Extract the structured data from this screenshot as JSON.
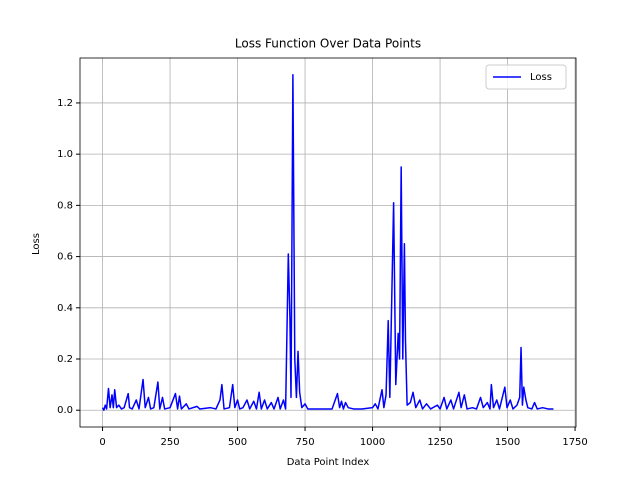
{
  "chart_data": {
    "type": "line",
    "title": "Loss Function Over Data Points",
    "x_label": "Data Point Index",
    "y_label": "Loss",
    "x": [
      0,
      5,
      10,
      15,
      22,
      28,
      35,
      40,
      45,
      52,
      60,
      70,
      80,
      95,
      100,
      110,
      125,
      135,
      150,
      158,
      170,
      178,
      190,
      205,
      212,
      222,
      230,
      250,
      270,
      278,
      285,
      292,
      310,
      320,
      350,
      360,
      400,
      420,
      435,
      442,
      450,
      470,
      482,
      490,
      500,
      508,
      520,
      535,
      545,
      560,
      570,
      580,
      588,
      600,
      610,
      625,
      635,
      650,
      658,
      670,
      678,
      688,
      694,
      698,
      705,
      712,
      718,
      724,
      730,
      738,
      750,
      760,
      800,
      850,
      870,
      878,
      885,
      892,
      900,
      910,
      930,
      960,
      1000,
      1010,
      1020,
      1035,
      1042,
      1050,
      1058,
      1064,
      1078,
      1086,
      1095,
      1100,
      1106,
      1112,
      1118,
      1122,
      1128,
      1140,
      1150,
      1160,
      1175,
      1185,
      1200,
      1215,
      1240,
      1250,
      1265,
      1275,
      1290,
      1300,
      1320,
      1328,
      1340,
      1350,
      1370,
      1385,
      1400,
      1410,
      1425,
      1435,
      1440,
      1448,
      1460,
      1470,
      1490,
      1498,
      1510,
      1520,
      1535,
      1545,
      1550,
      1555,
      1560,
      1568,
      1575,
      1590,
      1600,
      1610,
      1630,
      1650,
      1670
    ],
    "series": [
      {
        "name": "Loss",
        "color": "#0000ff",
        "values": [
          0.01,
          0.0,
          0.02,
          0.005,
          0.085,
          0.01,
          0.06,
          0.01,
          0.08,
          0.01,
          0.02,
          0.005,
          0.01,
          0.065,
          0.01,
          0.005,
          0.04,
          0.005,
          0.12,
          0.01,
          0.05,
          0.005,
          0.01,
          0.11,
          0.005,
          0.05,
          0.005,
          0.01,
          0.065,
          0.005,
          0.055,
          0.005,
          0.025,
          0.005,
          0.015,
          0.005,
          0.01,
          0.005,
          0.04,
          0.1,
          0.005,
          0.01,
          0.1,
          0.01,
          0.04,
          0.005,
          0.01,
          0.04,
          0.005,
          0.035,
          0.005,
          0.07,
          0.005,
          0.04,
          0.005,
          0.03,
          0.005,
          0.05,
          0.005,
          0.04,
          0.005,
          0.61,
          0.36,
          0.05,
          1.31,
          0.2,
          0.05,
          0.23,
          0.07,
          0.01,
          0.025,
          0.005,
          0.005,
          0.005,
          0.065,
          0.01,
          0.035,
          0.005,
          0.03,
          0.01,
          0.005,
          0.005,
          0.01,
          0.025,
          0.005,
          0.08,
          0.01,
          0.06,
          0.35,
          0.05,
          0.81,
          0.1,
          0.3,
          0.2,
          0.95,
          0.2,
          0.65,
          0.27,
          0.02,
          0.03,
          0.07,
          0.01,
          0.04,
          0.005,
          0.025,
          0.005,
          0.02,
          0.005,
          0.05,
          0.005,
          0.04,
          0.005,
          0.07,
          0.01,
          0.06,
          0.005,
          0.01,
          0.005,
          0.05,
          0.01,
          0.03,
          0.005,
          0.1,
          0.01,
          0.04,
          0.005,
          0.09,
          0.01,
          0.04,
          0.005,
          0.02,
          0.05,
          0.245,
          0.02,
          0.09,
          0.04,
          0.01,
          0.005,
          0.03,
          0.005,
          0.01,
          0.005,
          0.005
        ]
      }
    ],
    "xlim": [
      -83.5,
      1753.5
    ],
    "xticks": [
      0,
      250,
      500,
      750,
      1000,
      1250,
      1500,
      1750
    ],
    "ylim": [
      -0.0655,
      1.3755
    ],
    "yticks": [
      {
        "value": 0.0,
        "label": "0.0"
      },
      0.2,
      0.4,
      0.6,
      0.8,
      {
        "value": 1.0,
        "label": "1.0"
      },
      1.2
    ],
    "grid": true,
    "legend": "upper right"
  }
}
